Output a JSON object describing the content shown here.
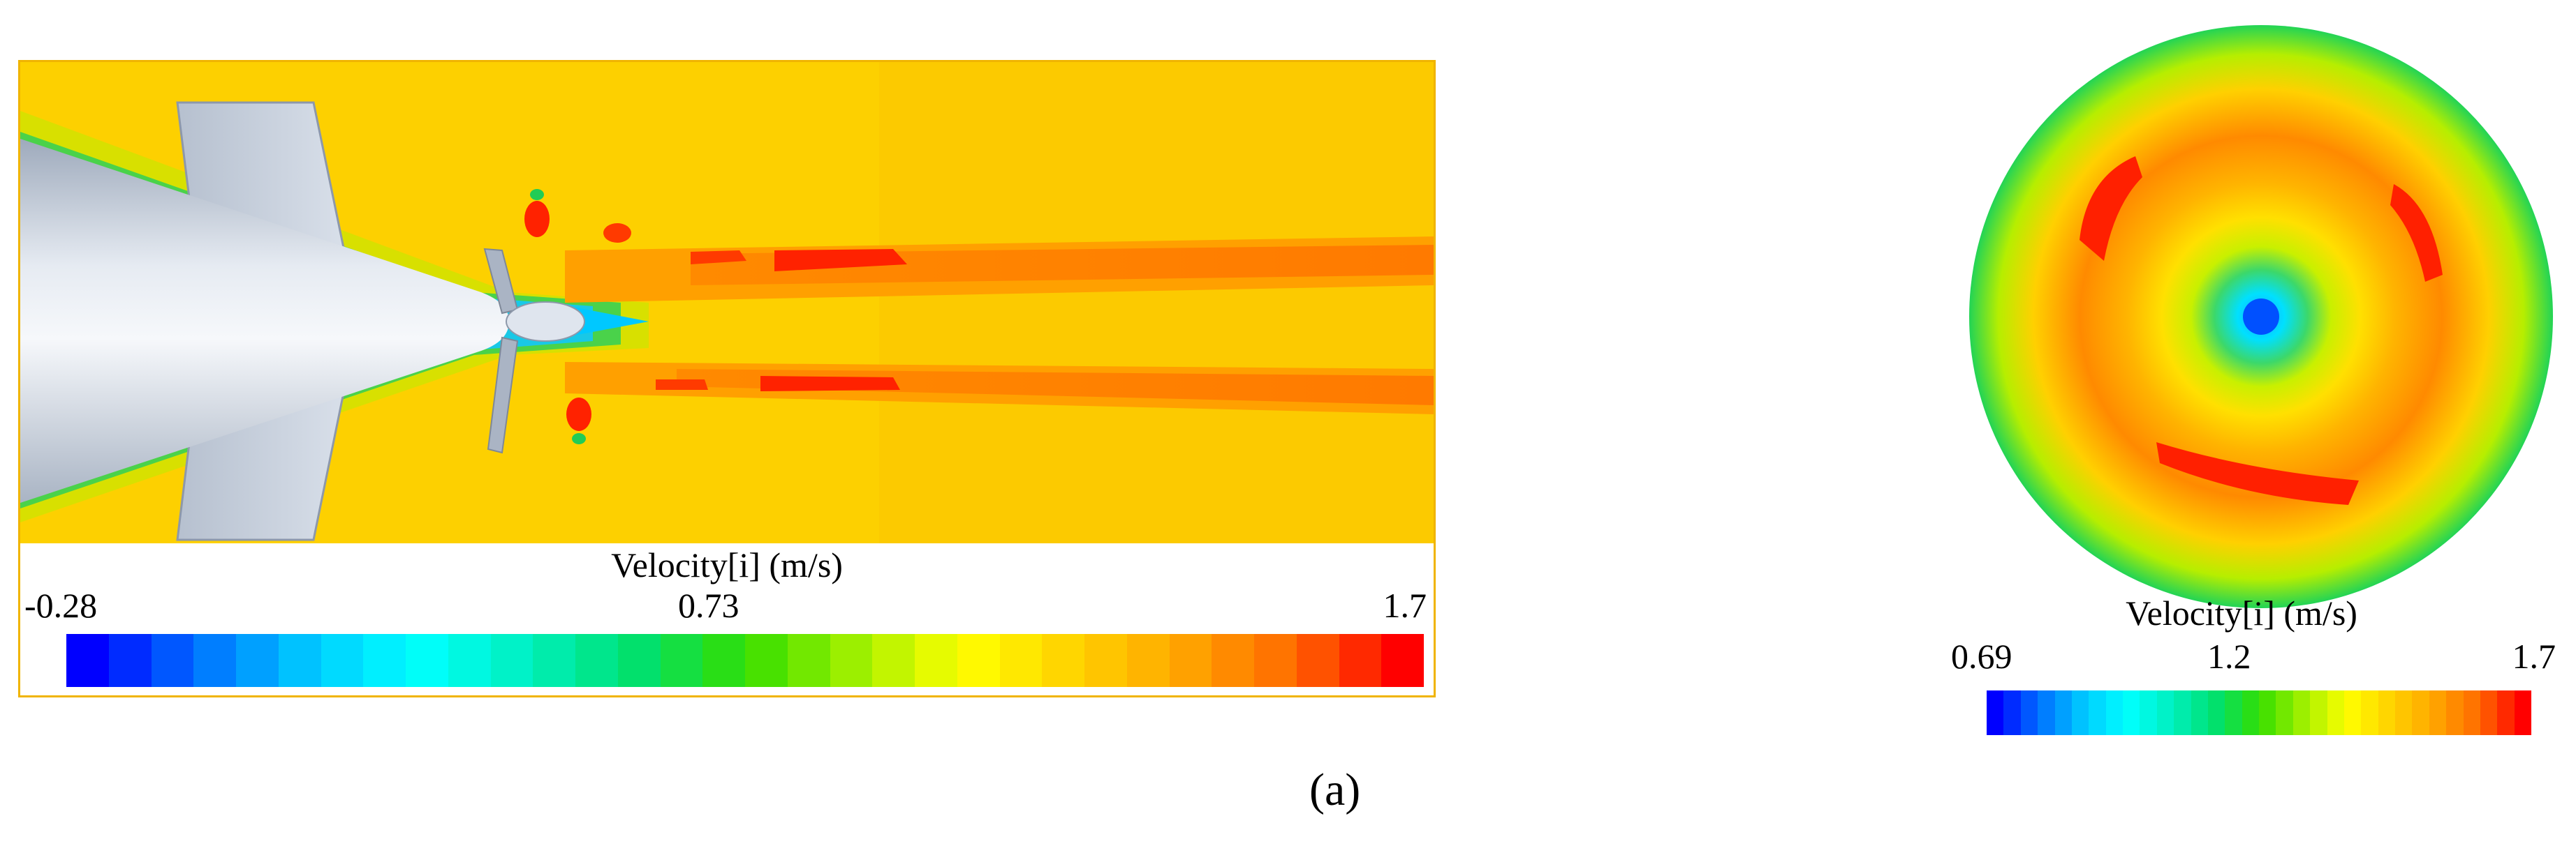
{
  "panel_a": {
    "legend": {
      "title": "Velocity[i] (m/s)",
      "min": "-0.28",
      "mid": "0.73",
      "max": "1.7"
    },
    "caption": "(a)"
  },
  "panel_disk": {
    "legend": {
      "title": "Velocity[i] (m/s)",
      "min": "0.69",
      "mid": "1.2",
      "max": "1.7"
    }
  },
  "colors": {
    "colormap": [
      "#0000ff",
      "#0070ff",
      "#00c8ff",
      "#00ffff",
      "#00f0c0",
      "#00e070",
      "#33dd00",
      "#a0f000",
      "#ffff00",
      "#ffd200",
      "#ffa500",
      "#ff6a00",
      "#ff0000"
    ],
    "free_stream": "#fdd000",
    "hull": "#c0cad8",
    "frame_border": "#f0b400"
  }
}
